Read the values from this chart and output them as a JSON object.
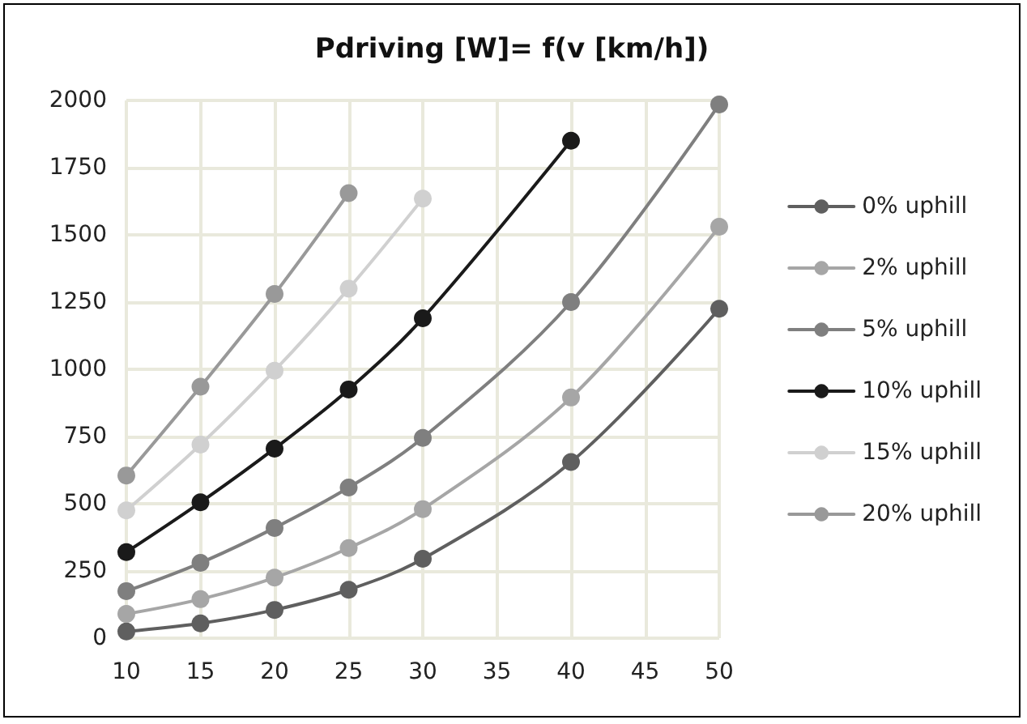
{
  "chart_data": {
    "type": "line",
    "title": "Pdriving [W]= f(v [km/h])",
    "x": [
      10,
      15,
      20,
      25,
      30,
      40,
      50
    ],
    "xlim": [
      10,
      50
    ],
    "xticks": [
      10,
      15,
      20,
      25,
      30,
      35,
      40,
      45,
      50
    ],
    "ylim": [
      0,
      2000
    ],
    "yticks": [
      0,
      250,
      500,
      750,
      1000,
      1250,
      1500,
      1750,
      2000
    ],
    "grid": true,
    "legend": "right",
    "marker": "circle",
    "line_style": "solid",
    "series": [
      {
        "name": "0% uphill",
        "color": "#5f5f5f",
        "values": [
          25,
          55,
          105,
          180,
          295,
          655,
          1225
        ]
      },
      {
        "name": "2% uphill",
        "color": "#a6a6a6",
        "values": [
          90,
          145,
          225,
          335,
          480,
          895,
          1530
        ]
      },
      {
        "name": "5% uphill",
        "color": "#7f7f7f",
        "values": [
          175,
          280,
          410,
          560,
          745,
          1250,
          1985
        ]
      },
      {
        "name": "10% uphill",
        "color": "#1a1a1a",
        "values": [
          320,
          505,
          705,
          925,
          1190,
          1850,
          null
        ]
      },
      {
        "name": "15% uphill",
        "color": "#d0d0d0",
        "values": [
          475,
          720,
          995,
          1300,
          1635,
          null,
          null
        ]
      },
      {
        "name": "20% uphill",
        "color": "#999999",
        "values": [
          605,
          935,
          1280,
          1655,
          null,
          null,
          null
        ]
      }
    ]
  }
}
